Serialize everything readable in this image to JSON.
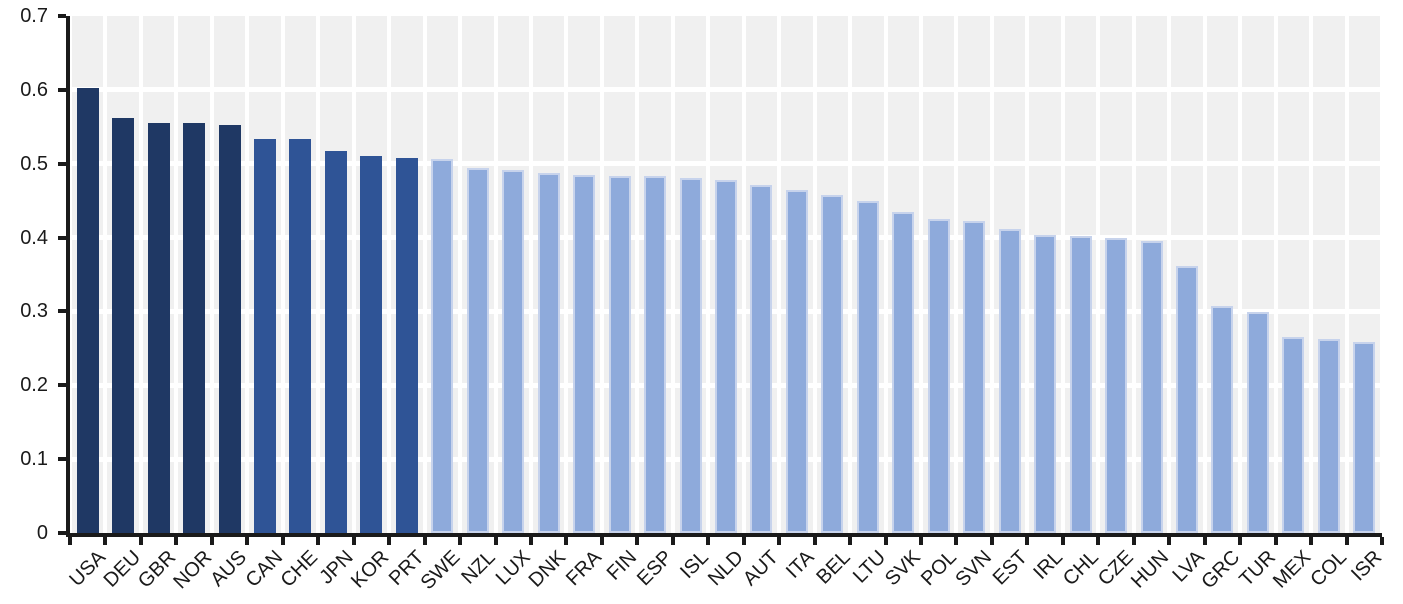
{
  "chart_data": {
    "type": "bar",
    "title": "",
    "xlabel": "",
    "ylabel": "",
    "ylim": [
      0,
      0.7
    ],
    "grid": true,
    "legend_position": "none",
    "y_ticks": [
      0,
      0.1,
      0.2,
      0.3,
      0.4,
      0.5,
      0.6,
      0.7
    ],
    "y_tick_labels": [
      "0",
      "0.1",
      "0.2",
      "0.3",
      "0.4",
      "0.5",
      "0.6",
      "0.7"
    ],
    "gridline_values": [
      0.1,
      0.2,
      0.3,
      0.4,
      0.5,
      0.6
    ],
    "categories": [
      "USA",
      "DEU",
      "GBR",
      "NOR",
      "AUS",
      "CAN",
      "CHE",
      "JPN",
      "KOR",
      "PRT",
      "SWE",
      "NZL",
      "LUX",
      "DNK",
      "FRA",
      "FIN",
      "ESP",
      "ISL",
      "NLD",
      "AUT",
      "ITA",
      "BEL",
      "LTU",
      "SVK",
      "POL",
      "SVN",
      "EST",
      "IRL",
      "CHL",
      "CZE",
      "HUN",
      "LVA",
      "GRC",
      "TUR",
      "MEX",
      "COL",
      "ISR"
    ],
    "values": [
      0.602,
      0.562,
      0.555,
      0.555,
      0.552,
      0.533,
      0.533,
      0.517,
      0.51,
      0.508,
      0.506,
      0.494,
      0.491,
      0.487,
      0.485,
      0.484,
      0.483,
      0.481,
      0.478,
      0.471,
      0.464,
      0.457,
      0.45,
      0.434,
      0.425,
      0.422,
      0.411,
      0.404,
      0.402,
      0.4,
      0.396,
      0.362,
      0.307,
      0.299,
      0.265,
      0.263,
      0.259
    ],
    "bar_color_groups": [
      "dark",
      "dark",
      "dark",
      "dark",
      "dark",
      "medium",
      "medium",
      "medium",
      "medium",
      "medium",
      "light",
      "light",
      "light",
      "light",
      "light",
      "light",
      "light",
      "light",
      "light",
      "light",
      "light",
      "light",
      "light",
      "light",
      "light",
      "light",
      "light",
      "light",
      "light",
      "light",
      "light",
      "light",
      "light",
      "light",
      "light",
      "light",
      "light"
    ],
    "colors": {
      "dark": "#1F3864",
      "medium": "#2F5496",
      "light": "#8EAADB",
      "light_border": "#C7D3EC",
      "plot_bg": "#F0F0F0",
      "gridline": "#FFFFFF",
      "axis": "#1A1A1A",
      "label": "#1A1A1A",
      "page_bg": "#FFFFFF"
    }
  }
}
